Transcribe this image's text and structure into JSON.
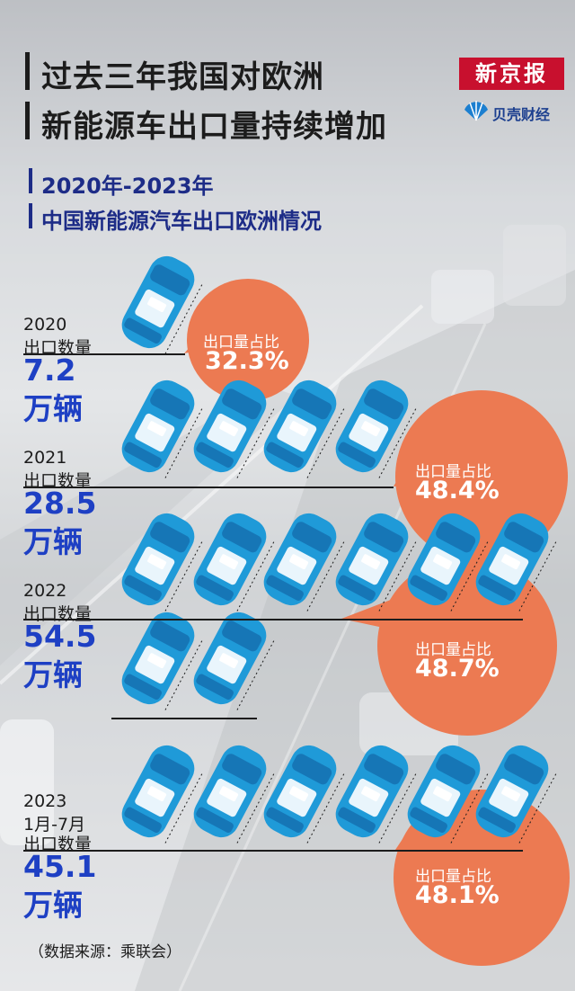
{
  "header": {
    "title_lines": [
      "过去三年我国对欧洲",
      "新能源车出口量持续增加"
    ],
    "subtitle_lines": [
      "2020年-2023年",
      "中国新能源汽车出口欧洲情况"
    ],
    "logo_text": "新京报",
    "brand_text": "贝壳财经"
  },
  "colors": {
    "car": "#1f9ad8",
    "car_dark": "#1676b6",
    "bubble": "#ec7a52",
    "value": "#1e40c4",
    "accent": "#c8102e"
  },
  "icons": [
    "car-icon",
    "shell-icon"
  ],
  "chart_data": {
    "type": "pictogram",
    "unit": "万辆",
    "categories": [
      "2020",
      "2021",
      "2022",
      "2023 1月-7月"
    ],
    "series": [
      {
        "name": "出口数量",
        "values": [
          7.2,
          28.5,
          54.5,
          45.1
        ]
      },
      {
        "name": "出口量占比",
        "values": [
          32.3,
          48.4,
          48.7,
          48.1
        ]
      }
    ],
    "cars_per_category": [
      1,
      4,
      8,
      6
    ]
  },
  "rows": [
    {
      "year_lines": [
        "2020",
        "出口数量"
      ],
      "value": "7.2",
      "unit": "万辆",
      "share_label": "出口量占比",
      "share": "32.3%"
    },
    {
      "year_lines": [
        "2021",
        "出口数量"
      ],
      "value": "28.5",
      "unit": "万辆",
      "share_label": "出口量占比",
      "share": "48.4%"
    },
    {
      "year_lines": [
        "2022",
        "出口数量"
      ],
      "value": "54.5",
      "unit": "万辆",
      "share_label": "出口量占比",
      "share": "48.7%"
    },
    {
      "year_lines": [
        "2023",
        "1月-7月",
        "出口数量"
      ],
      "value": "45.1",
      "unit": "万辆",
      "share_label": "出口量占比",
      "share": "48.1%"
    }
  ],
  "footer": {
    "source": "（数据来源：乘联会）"
  }
}
